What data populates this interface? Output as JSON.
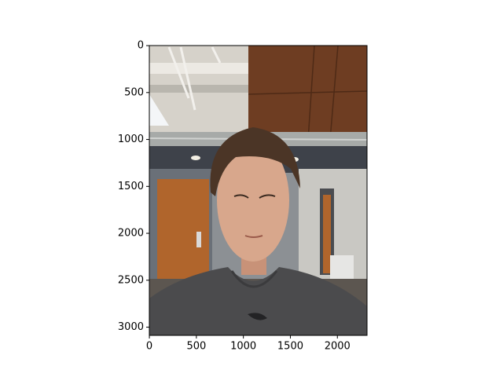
{
  "chart_data": {
    "type": "image",
    "xlim": [
      -0.5,
      2315.5
    ],
    "ylim": [
      3087.5,
      -0.5
    ],
    "xticks": [
      0,
      500,
      1000,
      1500,
      2000
    ],
    "yticks": [
      0,
      500,
      1000,
      1500,
      2000,
      2500,
      3000
    ]
  }
}
